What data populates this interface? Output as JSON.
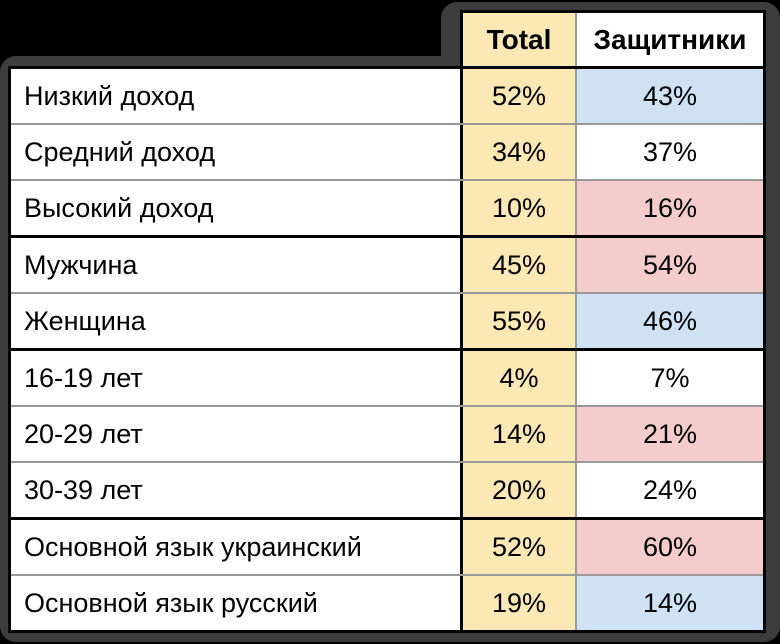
{
  "chart_data": {
    "type": "table",
    "columns": [
      "",
      "Total",
      "Защитники"
    ],
    "rows": [
      {
        "label": "Низкий доход",
        "total": "52%",
        "defenders": "43%",
        "defenders_bg": "blue",
        "section_break_above": false
      },
      {
        "label": "Средний доход",
        "total": "34%",
        "defenders": "37%",
        "defenders_bg": "white",
        "section_break_above": false
      },
      {
        "label": "Высокий доход",
        "total": "10%",
        "defenders": "16%",
        "defenders_bg": "pink",
        "section_break_above": false
      },
      {
        "label": "Мужчина",
        "total": "45%",
        "defenders": "54%",
        "defenders_bg": "pink",
        "section_break_above": true
      },
      {
        "label": "Женщина",
        "total": "55%",
        "defenders": "46%",
        "defenders_bg": "blue",
        "section_break_above": false
      },
      {
        "label": "16-19 лет",
        "total": "4%",
        "defenders": "7%",
        "defenders_bg": "white",
        "section_break_above": true
      },
      {
        "label": "20-29 лет",
        "total": "14%",
        "defenders": "21%",
        "defenders_bg": "pink",
        "section_break_above": false
      },
      {
        "label": "30-39 лет",
        "total": "20%",
        "defenders": "24%",
        "defenders_bg": "white",
        "section_break_above": false
      },
      {
        "label": "Основной язык украинский",
        "total": "52%",
        "defenders": "60%",
        "defenders_bg": "pink",
        "section_break_above": true
      },
      {
        "label": "Основной язык русский",
        "total": "19%",
        "defenders": "14%",
        "defenders_bg": "blue",
        "section_break_above": false
      }
    ]
  },
  "colors": {
    "background": "#000000",
    "frame": "#3C3C3C",
    "highlight_yellow": "#FCE8B4",
    "highlight_pink": "#F4CCCC",
    "highlight_blue": "#CFE2F3",
    "grid_minor": "#999999",
    "grid_major": "#000000"
  }
}
